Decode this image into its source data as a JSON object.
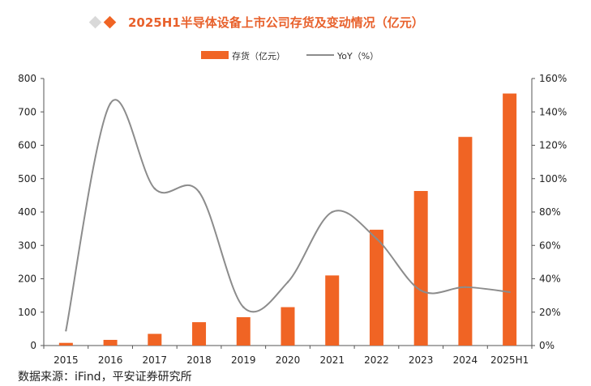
{
  "source": "数据来源：iFind，平安证券研究所",
  "colors": {
    "bar": "#f06424",
    "line": "#8c8c8c",
    "title": "#e8612c",
    "diamond_light": "#d9d9d9",
    "diamond_accent": "#f06424",
    "axis": "#555555"
  },
  "chart_data": {
    "type": "bar",
    "title": "2025H1半导体设备上市公司存货及变动情况（亿元）",
    "categories": [
      "2015",
      "2016",
      "2017",
      "2018",
      "2019",
      "2020",
      "2021",
      "2022",
      "2023",
      "2024",
      "2025H1"
    ],
    "series": [
      {
        "name": "存货（亿元）",
        "type": "bar",
        "axis": "left",
        "values": [
          8,
          17,
          35,
          70,
          85,
          115,
          210,
          347,
          463,
          625,
          755
        ]
      },
      {
        "name": "YoY（%）",
        "type": "line",
        "axis": "right",
        "values": [
          9,
          145,
          94,
          92,
          23,
          38,
          80,
          64,
          33,
          35,
          32
        ]
      }
    ],
    "left_axis": {
      "ylim": [
        0,
        800
      ],
      "ticks": [
        "0",
        "100",
        "200",
        "300",
        "400",
        "500",
        "600",
        "700",
        "800"
      ]
    },
    "right_axis": {
      "ylim": [
        0,
        160
      ],
      "ticks": [
        "0%",
        "20%",
        "40%",
        "60%",
        "80%",
        "100%",
        "120%",
        "140%",
        "160%"
      ]
    },
    "legend_position": "top-center",
    "grid": false
  }
}
